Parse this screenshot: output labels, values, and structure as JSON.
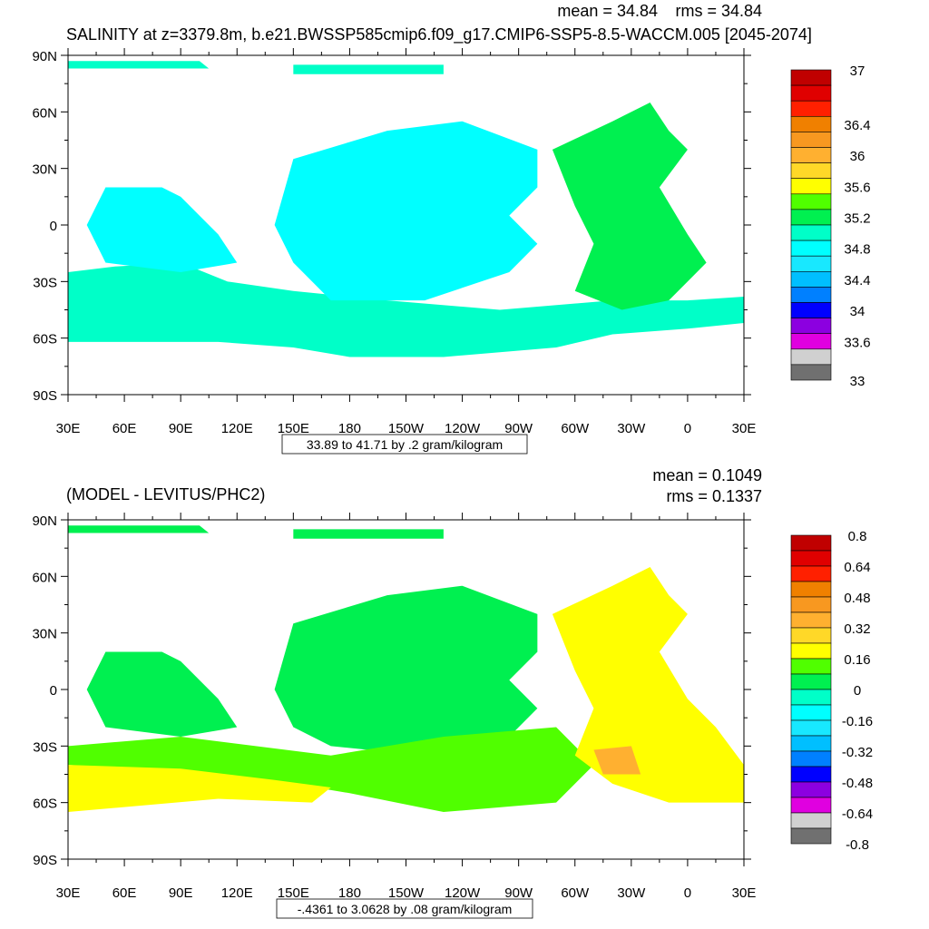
{
  "chart_data": [
    {
      "type": "heatmap",
      "title": "SALINITY at z=3379.8m, b.e21.BWSSP585cmip6.f09_g17.CMIP6-SSP5-8.5-WACCM.005 [2045-2074]",
      "stats": {
        "mean": "mean = 34.84",
        "rms": "rms = 34.84"
      },
      "info_label": "33.89 to 41.71 by .2 gram/kilogram",
      "x_tick_labels": [
        "30E",
        "60E",
        "90E",
        "120E",
        "150E",
        "180",
        "150W",
        "120W",
        "90W",
        "60W",
        "30W",
        "0",
        "30E"
      ],
      "y_tick_labels": [
        "90N",
        "60N",
        "30N",
        "0",
        "30S",
        "60S",
        "90S"
      ],
      "colorbar": {
        "colors": [
          "#c00000",
          "#e00000",
          "#ff2000",
          "#f08000",
          "#f89820",
          "#ffb030",
          "#ffd828",
          "#ffff00",
          "#50ff00",
          "#00f050",
          "#00ffc8",
          "#00ffff",
          "#18e8ff",
          "#00bfff",
          "#0080ff",
          "#0000ff",
          "#8c00e0",
          "#e000e0",
          "#d0d0d0",
          "#707070"
        ],
        "labels": [
          "37",
          "36.4",
          "36",
          "35.6",
          "35.2",
          "34.8",
          "34.4",
          "34",
          "33.6",
          "33"
        ],
        "label_values": [
          37,
          36.4,
          36,
          35.6,
          35.2,
          34.8,
          34.4,
          34,
          33.6,
          33
        ]
      }
    },
    {
      "type": "heatmap",
      "title": "(MODEL - LEVITUS/PHC2)",
      "stats": {
        "mean": "mean = 0.1049",
        "rms": "rms = 0.1337"
      },
      "info_label": "-.4361 to 3.0628 by .08 gram/kilogram",
      "x_tick_labels": [
        "30E",
        "60E",
        "90E",
        "120E",
        "150E",
        "180",
        "150W",
        "120W",
        "90W",
        "60W",
        "30W",
        "0",
        "30E"
      ],
      "y_tick_labels": [
        "90N",
        "60N",
        "30N",
        "0",
        "30S",
        "60S",
        "90S"
      ],
      "colorbar": {
        "colors": [
          "#c00000",
          "#e00000",
          "#ff2000",
          "#f08000",
          "#f89820",
          "#ffb030",
          "#ffd828",
          "#ffff00",
          "#50ff00",
          "#00f050",
          "#00ffc8",
          "#00ffff",
          "#18e8ff",
          "#00bfff",
          "#0080ff",
          "#0000ff",
          "#8c00e0",
          "#e000e0",
          "#d0d0d0",
          "#707070"
        ],
        "labels": [
          "0.8",
          "0.64",
          "0.48",
          "0.32",
          "0.16",
          "0",
          "-0.16",
          "-0.32",
          "-0.48",
          "-0.64",
          "-0.8"
        ],
        "label_values": [
          0.8,
          0.64,
          0.48,
          0.32,
          0.16,
          0,
          -0.16,
          -0.32,
          -0.48,
          -0.64,
          -0.8
        ]
      }
    }
  ]
}
